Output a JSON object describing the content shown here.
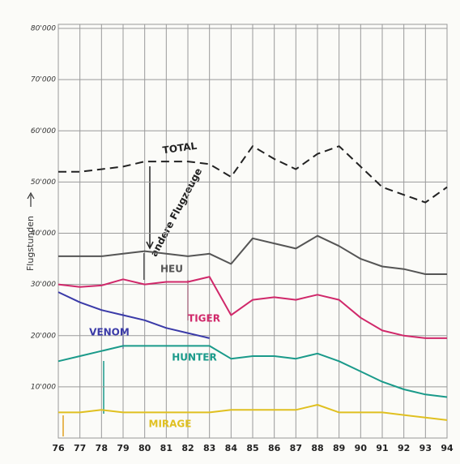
{
  "chart_data": {
    "type": "line",
    "y_axis_label": "Flugstunden",
    "annotation": "andere Flugzeuge",
    "x": [
      76,
      77,
      78,
      79,
      80,
      81,
      82,
      83,
      84,
      85,
      86,
      87,
      88,
      89,
      90,
      91,
      92,
      93,
      94
    ],
    "xlim": [
      76,
      94
    ],
    "xticks": [
      76,
      77,
      78,
      79,
      80,
      81,
      82,
      83,
      84,
      85,
      86,
      87,
      88,
      89,
      90,
      91,
      92,
      93,
      94
    ],
    "ylim": [
      0,
      80000
    ],
    "yticks": [
      {
        "value": 10000,
        "label": "10'000"
      },
      {
        "value": 20000,
        "label": "20'000"
      },
      {
        "value": 30000,
        "label": "30'000"
      },
      {
        "value": 40000,
        "label": "40'000"
      },
      {
        "value": 50000,
        "label": "50'000"
      },
      {
        "value": 60000,
        "label": "60'000"
      },
      {
        "value": 70000,
        "label": "70'000"
      },
      {
        "value": 80000,
        "label": "80'000"
      }
    ],
    "grid": true,
    "series": [
      {
        "name": "TOTAL",
        "color": "#222222",
        "line_style": "dashed",
        "values": [
          52000,
          52000,
          52500,
          53000,
          54000,
          54000,
          54000,
          53500,
          51000,
          57000,
          54500,
          52500,
          55500,
          57000,
          53000,
          49000,
          47500,
          46000,
          49000
        ]
      },
      {
        "name": "HEU",
        "color": "#555555",
        "values": [
          35500,
          35500,
          35500,
          36000,
          36500,
          36000,
          35500,
          36000,
          34000,
          39000,
          38000,
          37000,
          39500,
          37500,
          35000,
          33500,
          33000,
          32000,
          32000
        ]
      },
      {
        "name": "TIGER",
        "color": "#d0286a",
        "values": [
          30000,
          29500,
          29800,
          31000,
          30000,
          30500,
          30500,
          31500,
          24000,
          27000,
          27500,
          27000,
          28000,
          27000,
          23500,
          21000,
          20000,
          19500,
          19500
        ]
      },
      {
        "name": "VENOM",
        "color": "#3a3aa8",
        "values": [
          28500,
          26500,
          25000,
          24000,
          23000,
          21500,
          20500,
          19500,
          null,
          null,
          null,
          null,
          null,
          null,
          null,
          null,
          null,
          null,
          null
        ]
      },
      {
        "name": "HUNTER",
        "color": "#1a9a8a",
        "values": [
          15000,
          16000,
          17000,
          18000,
          18000,
          18000,
          18000,
          18000,
          15500,
          16000,
          16000,
          15500,
          16500,
          15000,
          13000,
          11000,
          9500,
          8500,
          8000
        ]
      },
      {
        "name": "MIRAGE",
        "color": "#e0c020",
        "values": [
          5000,
          5000,
          5500,
          5000,
          5000,
          5000,
          5000,
          5000,
          5500,
          5500,
          5500,
          5500,
          6500,
          5000,
          5000,
          5000,
          4500,
          4000,
          3500
        ]
      }
    ]
  }
}
